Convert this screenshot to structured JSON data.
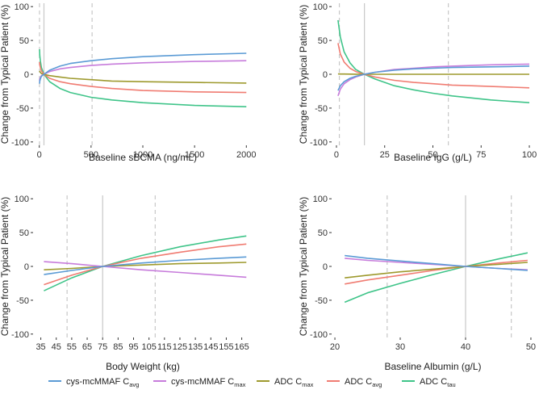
{
  "chart_data": [
    {
      "type": "line",
      "xlabel": "Baseline sBCMA (ng/mL)",
      "ylabel": "Change from Typical Patient (%)",
      "xlim": [
        -60,
        2060
      ],
      "ylim": [
        -105,
        105
      ],
      "xticks": [
        0,
        500,
        1000,
        1500,
        2000
      ],
      "yticks": [
        -100,
        -50,
        0,
        50,
        100
      ],
      "reference_x": 45,
      "dashed_x": [
        2,
        510
      ],
      "series": [
        {
          "name": "cys-mcMMAF Cavg",
          "x": [
            2,
            5,
            10,
            20,
            45,
            100,
            200,
            300,
            500,
            700,
            1000,
            1500,
            2000
          ],
          "values": [
            -14,
            -10,
            -7,
            -3,
            0,
            6,
            12,
            16,
            20,
            23,
            26,
            29,
            31
          ]
        },
        {
          "name": "cys-mcMMAF Cmax",
          "x": [
            2,
            5,
            10,
            20,
            45,
            100,
            200,
            300,
            500,
            700,
            1000,
            1500,
            2000
          ],
          "values": [
            -10,
            -7,
            -5,
            -2,
            0,
            4,
            8,
            10,
            13,
            15,
            17,
            19,
            20
          ]
        },
        {
          "name": "ADC Cmax",
          "x": [
            2,
            5,
            10,
            20,
            45,
            100,
            200,
            300,
            500,
            700,
            1000,
            1500,
            2000
          ],
          "values": [
            5,
            4,
            3,
            1,
            0,
            -2,
            -4,
            -6,
            -8,
            -10,
            -11,
            -12,
            -13
          ]
        },
        {
          "name": "ADC Cavg",
          "x": [
            2,
            5,
            10,
            20,
            45,
            100,
            200,
            300,
            500,
            700,
            1000,
            1500,
            2000
          ],
          "values": [
            18,
            14,
            10,
            5,
            0,
            -6,
            -11,
            -14,
            -18,
            -21,
            -24,
            -26,
            -27
          ]
        },
        {
          "name": "ADC Ctau",
          "x": [
            2,
            5,
            10,
            20,
            45,
            100,
            200,
            300,
            500,
            700,
            1000,
            1500,
            2000
          ],
          "values": [
            37,
            28,
            20,
            10,
            0,
            -11,
            -21,
            -27,
            -34,
            -38,
            -42,
            -46,
            -48
          ]
        }
      ]
    },
    {
      "type": "line",
      "xlabel": "Baseline IgG (g/L)",
      "ylabel": "Change from Typical Patient (%)",
      "xlim": [
        -2.5,
        102.5
      ],
      "ylim": [
        -105,
        105
      ],
      "xticks": [
        0,
        25,
        50,
        75,
        100
      ],
      "yticks": [
        -100,
        -50,
        0,
        50,
        100
      ],
      "reference_x": 14.5,
      "dashed_x": [
        1.5,
        58
      ],
      "series": [
        {
          "name": "cys-mcMMAF Cavg",
          "x": [
            0.8,
            2,
            4,
            7,
            10,
            14.5,
            20,
            30,
            40,
            50,
            60,
            70,
            80,
            90,
            100
          ],
          "values": [
            -24,
            -17,
            -11,
            -6,
            -3,
            0,
            3,
            6,
            8,
            9,
            10,
            10.5,
            11,
            11.5,
            12
          ]
        },
        {
          "name": "cys-mcMMAF Cmax",
          "x": [
            0.8,
            2,
            4,
            7,
            10,
            14.5,
            20,
            30,
            40,
            50,
            60,
            70,
            80,
            90,
            100
          ],
          "values": [
            -32,
            -22,
            -14,
            -8,
            -4,
            0,
            3,
            7,
            9,
            11,
            12,
            13,
            14,
            14.5,
            15
          ]
        },
        {
          "name": "ADC Cmax",
          "x": [
            0.8,
            2,
            4,
            7,
            10,
            14.5,
            20,
            30,
            40,
            50,
            60,
            70,
            80,
            90,
            100
          ],
          "values": [
            0.5,
            0.4,
            0.3,
            0.2,
            0.1,
            0,
            0,
            0,
            0,
            0,
            0,
            0,
            0,
            0,
            0
          ]
        },
        {
          "name": "ADC Cavg",
          "x": [
            0.8,
            2,
            4,
            7,
            10,
            14.5,
            20,
            30,
            40,
            50,
            60,
            70,
            80,
            90,
            100
          ],
          "values": [
            46,
            30,
            18,
            9,
            4,
            0,
            -4,
            -9,
            -12,
            -14,
            -16,
            -17,
            -18,
            -19,
            -20
          ]
        },
        {
          "name": "ADC Ctau",
          "x": [
            0.8,
            2,
            4,
            7,
            10,
            14.5,
            20,
            30,
            40,
            50,
            60,
            70,
            80,
            90,
            100
          ],
          "values": [
            80,
            55,
            33,
            17,
            7,
            0,
            -7,
            -17,
            -23,
            -28,
            -32,
            -35,
            -38,
            -40,
            -42
          ]
        }
      ]
    },
    {
      "type": "line",
      "xlabel": "Body Weight (kg)",
      "ylabel": "Change from Typical Patient (%)",
      "xlim": [
        30,
        172
      ],
      "ylim": [
        -105,
        105
      ],
      "xticks": [
        35,
        45,
        55,
        65,
        75,
        85,
        95,
        105,
        115,
        125,
        135,
        145,
        155,
        165
      ],
      "yticks": [
        -100,
        -50,
        0,
        50,
        100
      ],
      "reference_x": 75,
      "dashed_x": [
        52,
        109
      ],
      "series": [
        {
          "name": "cys-mcMMAF Cavg",
          "x": [
            37,
            55,
            75,
            100,
            125,
            150,
            168
          ],
          "values": [
            -12,
            -6,
            0,
            5,
            9,
            12,
            14
          ]
        },
        {
          "name": "cys-mcMMAF Cmax",
          "x": [
            37,
            55,
            75,
            100,
            125,
            150,
            168
          ],
          "values": [
            7,
            4,
            0,
            -5,
            -9,
            -13,
            -16
          ]
        },
        {
          "name": "ADC Cmax",
          "x": [
            37,
            55,
            75,
            100,
            125,
            150,
            168
          ],
          "values": [
            -5,
            -3,
            0,
            2,
            4,
            5,
            6
          ]
        },
        {
          "name": "ADC Cavg",
          "x": [
            37,
            55,
            75,
            100,
            125,
            150,
            168
          ],
          "values": [
            -27,
            -13,
            0,
            12,
            21,
            29,
            33
          ]
        },
        {
          "name": "ADC Ctau",
          "x": [
            37,
            55,
            75,
            100,
            125,
            150,
            168
          ],
          "values": [
            -36,
            -17,
            0,
            16,
            29,
            39,
            45
          ]
        }
      ]
    },
    {
      "type": "line",
      "xlabel": "Baseline Albumin (g/L)",
      "ylabel": "Change from Typical Patient (%)",
      "xlim": [
        19.5,
        50.5
      ],
      "ylim": [
        -105,
        105
      ],
      "xticks": [
        20,
        30,
        40,
        50
      ],
      "yticks": [
        -100,
        -50,
        0,
        50,
        100
      ],
      "reference_x": 40,
      "dashed_x": [
        28,
        47
      ],
      "series": [
        {
          "name": "cys-mcMMAF Cavg",
          "x": [
            21.5,
            25,
            30,
            35,
            40,
            45,
            49.5
          ],
          "values": [
            16,
            12,
            8,
            4,
            0,
            -3,
            -6
          ]
        },
        {
          "name": "cys-mcMMAF Cmax",
          "x": [
            21.5,
            25,
            30,
            35,
            40,
            45,
            49.5
          ],
          "values": [
            12,
            9,
            6,
            3,
            0,
            -3,
            -5
          ]
        },
        {
          "name": "ADC Cmax",
          "x": [
            21.5,
            25,
            30,
            35,
            40,
            45,
            49.5
          ],
          "values": [
            -17,
            -13,
            -8,
            -4,
            0,
            3,
            6
          ]
        },
        {
          "name": "ADC Cavg",
          "x": [
            21.5,
            25,
            30,
            35,
            40,
            45,
            49.5
          ],
          "values": [
            -26,
            -20,
            -13,
            -6,
            0,
            5,
            9
          ]
        },
        {
          "name": "ADC Ctau",
          "x": [
            21.5,
            25,
            30,
            35,
            40,
            45,
            49.5
          ],
          "values": [
            -53,
            -39,
            -25,
            -12,
            0,
            11,
            20
          ]
        }
      ]
    }
  ],
  "legend": [
    {
      "base": "cys-mcMMAF C",
      "sub": "avg",
      "color": "#5B9BD5"
    },
    {
      "base": "cys-mcMMAF C",
      "sub": "max",
      "color": "#C77CDB"
    },
    {
      "base": "ADC C",
      "sub": "max",
      "color": "#9E9A2E"
    },
    {
      "base": "ADC C",
      "sub": "avg",
      "color": "#F07C72"
    },
    {
      "base": "ADC C",
      "sub": "tau",
      "color": "#3FC489"
    }
  ],
  "series_colors": {
    "cys-mcMMAF Cavg": "#5B9BD5",
    "cys-mcMMAF Cmax": "#C77CDB",
    "ADC Cmax": "#9E9A2E",
    "ADC Cavg": "#F07C72",
    "ADC Ctau": "#3FC489"
  }
}
